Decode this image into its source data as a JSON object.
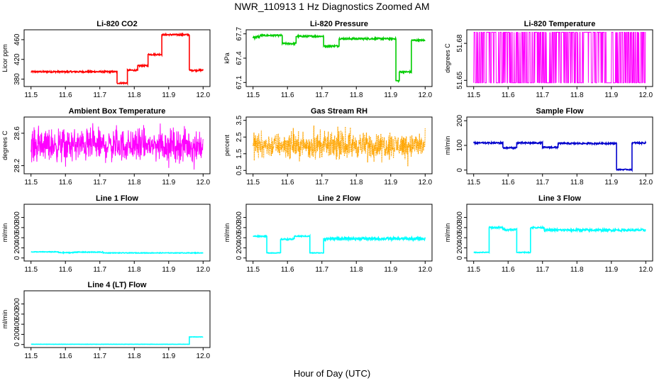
{
  "title": "NWR_110913  1 Hz Diagnostics Zoomed AM",
  "xlabel": "Hour of Day (UTC)",
  "chart_data": [
    {
      "type": "line",
      "title": "Li-820 CO2",
      "xlabel": "",
      "ylabel": "Licor ppm",
      "color": "#ff0000",
      "xlim": [
        11.5,
        12.0
      ],
      "ylim": [
        365,
        480
      ],
      "xticks": [
        11.5,
        11.6,
        11.7,
        11.8,
        11.9,
        12.0
      ],
      "yticks": [
        380,
        420,
        460
      ],
      "series": [
        {
          "segments": [
            [
              11.5,
              11.75,
              395,
              1.5
            ],
            [
              11.75,
              11.78,
              372,
              1.5
            ],
            [
              11.78,
              11.81,
              398,
              1.5
            ],
            [
              11.81,
              11.84,
              407,
              1.5
            ],
            [
              11.84,
              11.88,
              430,
              1.5
            ],
            [
              11.88,
              11.96,
              470,
              1.5
            ],
            [
              11.96,
              12.0,
              398,
              1.5
            ]
          ]
        }
      ]
    },
    {
      "type": "line",
      "title": "Li-820 Pressure",
      "xlabel": "",
      "ylabel": "kPa",
      "color": "#00cc00",
      "xlim": [
        11.5,
        12.0
      ],
      "ylim": [
        67.05,
        67.75
      ],
      "xticks": [
        11.5,
        11.6,
        11.7,
        11.8,
        11.9,
        12.0
      ],
      "yticks": [
        67.1,
        67.4,
        67.7
      ],
      "series": [
        {
          "segments": [
            [
              11.5,
              11.52,
              67.66,
              0.02
            ],
            [
              11.52,
              11.585,
              67.68,
              0.01
            ],
            [
              11.585,
              11.625,
              67.58,
              0.01
            ],
            [
              11.625,
              11.705,
              67.67,
              0.01
            ],
            [
              11.705,
              11.75,
              67.55,
              0.01
            ],
            [
              11.75,
              11.915,
              67.64,
              0.01
            ],
            [
              11.915,
              11.925,
              67.12,
              0.01
            ],
            [
              11.925,
              11.96,
              67.23,
              0.01
            ],
            [
              11.96,
              12.0,
              67.62,
              0.01
            ]
          ]
        }
      ]
    },
    {
      "type": "line",
      "title": "Li-820 Temperature",
      "xlabel": "",
      "ylabel": "degrees C",
      "color": "#ff00ff",
      "xlim": [
        11.5,
        12.0
      ],
      "ylim": [
        51.645,
        51.691
      ],
      "xticks": [
        11.5,
        11.6,
        11.7,
        11.8,
        11.9,
        12.0
      ],
      "yticks": [
        51.65,
        51.68
      ],
      "series": [
        {
          "toggle": [
            51.648,
            51.689
          ]
        }
      ]
    },
    {
      "type": "line",
      "title": "Ambient Box Temperature",
      "xlabel": "",
      "ylabel": "degrees C",
      "color": "#ff00ff",
      "xlim": [
        11.5,
        12.0
      ],
      "ylim": [
        28.1,
        28.8
      ],
      "xticks": [
        11.5,
        11.6,
        11.7,
        11.8,
        11.9,
        12.0
      ],
      "yticks": [
        28.2,
        28.6
      ],
      "series": [
        {
          "noise": [
            28.45,
            0.12,
            0.3
          ]
        }
      ]
    },
    {
      "type": "scatter",
      "title": "Gas Stream RH",
      "xlabel": "",
      "ylabel": "percent",
      "color": "#ffa500",
      "xlim": [
        11.5,
        12.0
      ],
      "ylim": [
        0.3,
        3.7
      ],
      "xticks": [
        11.5,
        11.6,
        11.7,
        11.8,
        11.9,
        12.0
      ],
      "yticks": [
        0.5,
        1.5,
        2.5,
        3.5
      ],
      "series": [
        {
          "noise": [
            2.0,
            0.45,
            1.3
          ]
        }
      ]
    },
    {
      "type": "line",
      "title": "Sample Flow",
      "xlabel": "",
      "ylabel": "ml/min",
      "color": "#0000cc",
      "xlim": [
        11.5,
        12.0
      ],
      "ylim": [
        -15,
        215
      ],
      "xticks": [
        11.5,
        11.6,
        11.7,
        11.8,
        11.9,
        12.0
      ],
      "yticks": [
        0,
        100,
        200
      ],
      "series": [
        {
          "segments": [
            [
              11.5,
              11.585,
              110,
              3
            ],
            [
              11.585,
              11.625,
              90,
              3
            ],
            [
              11.625,
              11.7,
              110,
              3
            ],
            [
              11.7,
              11.745,
              92,
              3
            ],
            [
              11.745,
              11.915,
              108,
              3
            ],
            [
              11.915,
              11.96,
              2,
              2
            ],
            [
              11.96,
              12.0,
              110,
              3
            ]
          ]
        }
      ]
    },
    {
      "type": "line",
      "title": "Line 1 Flow",
      "xlabel": "",
      "ylabel": "ml/min",
      "color": "#00ffff",
      "xlim": [
        11.5,
        12.0
      ],
      "ylim": [
        -60,
        1060
      ],
      "xticks": [
        11.5,
        11.6,
        11.7,
        11.8,
        11.9,
        12.0
      ],
      "yticks": [
        0,
        200,
        400,
        600,
        800
      ],
      "series": [
        {
          "segments": [
            [
              11.5,
              11.58,
              120,
              6
            ],
            [
              11.58,
              11.625,
              105,
              8
            ],
            [
              11.625,
              11.71,
              115,
              8
            ],
            [
              11.71,
              12.0,
              100,
              6
            ]
          ]
        }
      ]
    },
    {
      "type": "line",
      "title": "Line 2 Flow",
      "xlabel": "",
      "ylabel": "ml/min",
      "color": "#00ffff",
      "xlim": [
        11.5,
        12.0
      ],
      "ylim": [
        -60,
        1060
      ],
      "xticks": [
        11.5,
        11.6,
        11.7,
        11.8,
        11.9,
        12.0
      ],
      "yticks": [
        0,
        200,
        400,
        600,
        800
      ],
      "series": [
        {
          "segments": [
            [
              11.5,
              11.54,
              430,
              10
            ],
            [
              11.54,
              11.58,
              100,
              6
            ],
            [
              11.58,
              11.62,
              370,
              15
            ],
            [
              11.62,
              11.665,
              430,
              10
            ],
            [
              11.665,
              11.705,
              100,
              6
            ],
            [
              11.705,
              12.0,
              380,
              28
            ]
          ]
        }
      ]
    },
    {
      "type": "line",
      "title": "Line 3 Flow",
      "xlabel": "",
      "ylabel": "ml/min",
      "color": "#00ffff",
      "xlim": [
        11.5,
        12.0
      ],
      "ylim": [
        -60,
        1060
      ],
      "xticks": [
        11.5,
        11.6,
        11.7,
        11.8,
        11.9,
        12.0
      ],
      "yticks": [
        0,
        200,
        400,
        600,
        800
      ],
      "series": [
        {
          "segments": [
            [
              11.5,
              11.545,
              110,
              8
            ],
            [
              11.545,
              11.585,
              600,
              15
            ],
            [
              11.585,
              11.625,
              560,
              20
            ],
            [
              11.625,
              11.665,
              110,
              8
            ],
            [
              11.665,
              11.705,
              600,
              15
            ],
            [
              11.705,
              12.0,
              550,
              22
            ]
          ]
        }
      ]
    },
    {
      "type": "line",
      "title": "Line 4 (LT) Flow",
      "xlabel": "",
      "ylabel": "ml/min",
      "color": "#00ffff",
      "xlim": [
        11.5,
        12.0
      ],
      "ylim": [
        -60,
        1060
      ],
      "xticks": [
        11.5,
        11.6,
        11.7,
        11.8,
        11.9,
        12.0
      ],
      "yticks": [
        0,
        200,
        400,
        600,
        800
      ],
      "series": [
        {
          "segments": [
            [
              11.5,
              11.96,
              5,
              2
            ],
            [
              11.96,
              12.0,
              150,
              3
            ]
          ]
        }
      ]
    }
  ]
}
